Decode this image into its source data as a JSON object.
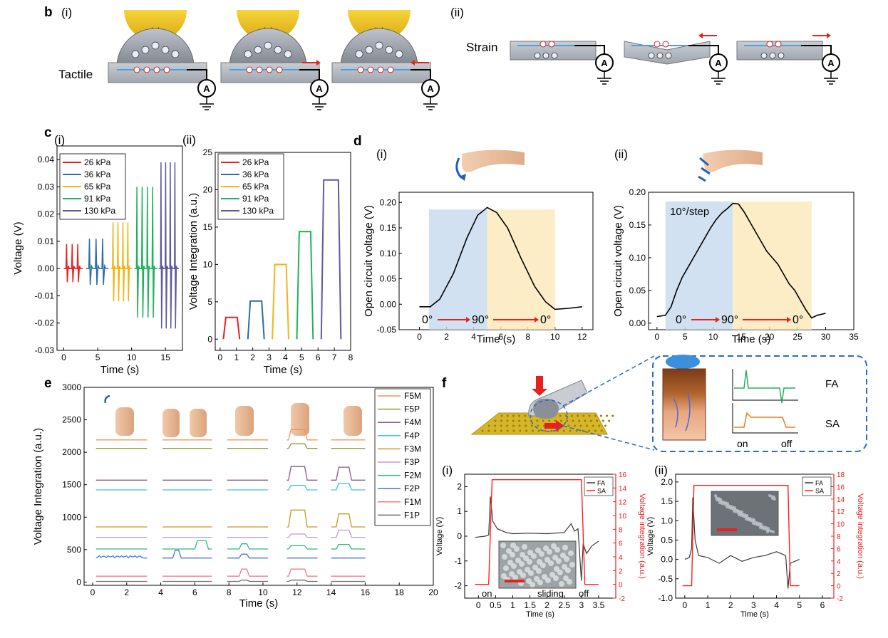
{
  "panel_b": {
    "label": "b",
    "sub_i": "(i)",
    "sub_ii": "(ii)",
    "tactile_label": "Tactile",
    "strain_label": "Strain",
    "ammeter_symbol": "A"
  },
  "panel_c": {
    "label": "c",
    "sub_i": "(i)",
    "sub_ii": "(ii)"
  },
  "panel_d": {
    "label": "d",
    "sub_i": "(i)",
    "sub_ii": "(ii)",
    "angle_labels": [
      "0°",
      "90°",
      "0°"
    ],
    "step_label": "10°/step"
  },
  "panel_e": {
    "label": "e"
  },
  "panel_f": {
    "label": "f",
    "sub_i": "(i)",
    "sub_ii": "(ii)",
    "inset_fa": "FA",
    "inset_sa": "SA",
    "inset_on": "on",
    "inset_off": "off",
    "label_on": "on",
    "label_sliding": "sliding",
    "label_off": "off"
  },
  "chart_data": [
    {
      "id": "c-i",
      "type": "line",
      "xlabel": "Time (s)",
      "ylabel": "Voltage (V)",
      "xlim": [
        -1,
        17.5
      ],
      "ylim": [
        -0.03,
        0.045
      ],
      "xticks": [
        0,
        5,
        10,
        15
      ],
      "yticks": [
        -0.03,
        -0.02,
        -0.01,
        0.0,
        0.01,
        0.02,
        0.03,
        0.04
      ],
      "ytick_labels": [
        "-0.03",
        "-0.02",
        "-0.01",
        "0.00",
        "0.01",
        "0.02",
        "0.03",
        "0.04"
      ],
      "legend_position": "top-left",
      "series": [
        {
          "name": "26 kPa",
          "color": "#e8201f",
          "start": 0,
          "end": 2.8,
          "peak": 0.009,
          "trough": -0.005
        },
        {
          "name": "36 kPa",
          "color": "#2e6da4",
          "start": 3.3,
          "end": 6.6,
          "peak": 0.011,
          "trough": -0.006
        },
        {
          "name": "65 kPa",
          "color": "#f2b416",
          "start": 6.9,
          "end": 10.1,
          "peak": 0.017,
          "trough": -0.012
        },
        {
          "name": "91 kPa",
          "color": "#21b15c",
          "start": 10.4,
          "end": 13.8,
          "peak": 0.03,
          "trough": -0.018
        },
        {
          "name": "130 kPa",
          "color": "#5e5a9e",
          "start": 14.0,
          "end": 17.0,
          "peak": 0.039,
          "trough": -0.022
        }
      ]
    },
    {
      "id": "c-ii",
      "type": "line",
      "xlabel": "Time (s)",
      "ylabel": "Voltage Integration (a.u.)",
      "xlim": [
        -0.3,
        8
      ],
      "ylim": [
        -1.5,
        25
      ],
      "xticks": [
        0,
        1,
        2,
        3,
        4,
        5,
        6,
        7,
        8
      ],
      "yticks": [
        0,
        5,
        10,
        15,
        20,
        25
      ],
      "legend_position": "top-left",
      "series": [
        {
          "name": "26 kPa",
          "color": "#e8201f",
          "x": [
            0.2,
            0.35,
            1.05,
            1.2
          ],
          "y": [
            0,
            2.9,
            2.9,
            0
          ]
        },
        {
          "name": "36 kPa",
          "color": "#2e6da4",
          "x": [
            1.7,
            1.85,
            2.55,
            2.7
          ],
          "y": [
            0,
            5.1,
            5.1,
            0
          ]
        },
        {
          "name": "65 kPa",
          "color": "#f2b416",
          "x": [
            3.2,
            3.35,
            4.05,
            4.2
          ],
          "y": [
            0,
            10,
            10,
            0
          ]
        },
        {
          "name": "91 kPa",
          "color": "#21b15c",
          "x": [
            4.7,
            4.85,
            5.55,
            5.7
          ],
          "y": [
            0,
            14.4,
            14.4,
            0
          ]
        },
        {
          "name": "130 kPa",
          "color": "#5e5a9e",
          "x": [
            6.2,
            6.35,
            7.25,
            7.4
          ],
          "y": [
            0,
            21.3,
            21.3,
            0
          ]
        }
      ]
    },
    {
      "id": "d-i",
      "type": "line",
      "xlabel": "Time (s)",
      "ylabel": "Open circuit voltage (V)",
      "xlim": [
        -1.5,
        12.8
      ],
      "ylim": [
        -0.05,
        0.22
      ],
      "xticks": [
        0,
        2,
        4,
        6,
        8,
        10,
        12
      ],
      "yticks": [
        -0.05,
        0.0,
        0.05,
        0.1,
        0.15,
        0.2
      ],
      "ytick_labels": [
        "-0.05",
        "0.00",
        "0.05",
        "0.10",
        "0.15",
        "0.20"
      ],
      "shade_blue": [
        0.7,
        5.0
      ],
      "shade_yellow": [
        5.0,
        10.0
      ],
      "series": [
        {
          "name": "",
          "color": "#000000",
          "x": [
            0,
            0.8,
            1.5,
            2.5,
            3.5,
            4.3,
            5.0,
            5.7,
            6.5,
            7.5,
            8.5,
            9.3,
            10.0,
            11.0,
            12.0
          ],
          "y": [
            -0.005,
            -0.005,
            0.01,
            0.06,
            0.13,
            0.175,
            0.19,
            0.18,
            0.15,
            0.09,
            0.035,
            0.005,
            -0.01,
            -0.008,
            -0.005
          ]
        }
      ]
    },
    {
      "id": "d-ii",
      "type": "line",
      "xlabel": "Time (s)",
      "ylabel": "Open circuit voltage (V)",
      "xlim": [
        -1.5,
        35
      ],
      "ylim": [
        -0.01,
        0.2
      ],
      "xticks": [
        0,
        5,
        10,
        15,
        20,
        25,
        30,
        35
      ],
      "yticks": [
        0.0,
        0.05,
        0.1,
        0.15,
        0.2
      ],
      "ytick_labels": [
        "0.00",
        "0.05",
        "0.10",
        "0.15",
        "0.20"
      ],
      "shade_blue": [
        1.5,
        13.5
      ],
      "shade_yellow": [
        13.5,
        27.5
      ],
      "series": [
        {
          "name": "",
          "color": "#000000",
          "x": [
            0,
            1.5,
            2.5,
            3.5,
            4.5,
            5.5,
            6.5,
            7.5,
            8.5,
            9.5,
            10.5,
            11.5,
            12.5,
            13.5,
            14.5,
            15.5,
            16.5,
            17.5,
            18.5,
            19.5,
            20.5,
            21.5,
            22.5,
            23.5,
            24.5,
            25.5,
            26.5,
            27.5,
            28.5,
            30.0
          ],
          "y": [
            0.01,
            0.012,
            0.025,
            0.05,
            0.07,
            0.085,
            0.1,
            0.115,
            0.13,
            0.145,
            0.158,
            0.168,
            0.175,
            0.183,
            0.182,
            0.17,
            0.155,
            0.14,
            0.125,
            0.11,
            0.1,
            0.09,
            0.075,
            0.06,
            0.05,
            0.035,
            0.02,
            0.008,
            0.012,
            0.015
          ]
        }
      ]
    },
    {
      "id": "e",
      "type": "line",
      "xlabel": "Time (s)",
      "ylabel": "Voltage Integration (a.u.)",
      "xlim": [
        -0.5,
        20
      ],
      "ylim": [
        -50,
        3000
      ],
      "xticks": [
        0,
        2,
        4,
        6,
        8,
        10,
        12,
        14,
        16,
        18,
        20
      ],
      "yticks": [
        0,
        500,
        1000,
        1500,
        2000,
        2500,
        3000
      ],
      "legend_position": "right",
      "series": [
        {
          "name": "F5M",
          "color": "#f4945f",
          "base": 2190,
          "rise": [
            0,
            0,
            0,
            160,
            0
          ]
        },
        {
          "name": "F5P",
          "color": "#8f9a3c",
          "base": 2060,
          "rise": [
            0,
            0,
            0,
            70,
            0
          ]
        },
        {
          "name": "F4M",
          "color": "#8e5a84",
          "base": 1570,
          "rise": [
            0,
            0,
            0,
            210,
            200
          ]
        },
        {
          "name": "F4P",
          "color": "#3cc7cf",
          "base": 1420,
          "rise": [
            0,
            0,
            0,
            70,
            100
          ]
        },
        {
          "name": "F3M",
          "color": "#c29a24",
          "base": 850,
          "rise": [
            0,
            0,
            0,
            260,
            200
          ]
        },
        {
          "name": "F3P",
          "color": "#c495e6",
          "base": 690,
          "rise": [
            0,
            0,
            0,
            50,
            110
          ]
        },
        {
          "name": "F2M",
          "color": "#2fb880",
          "base": 510,
          "rise": [
            0,
            130,
            80,
            50,
            70
          ]
        },
        {
          "name": "F2P",
          "color": "#4a78c7",
          "base": 370,
          "rise": [
            0,
            120,
            60,
            0,
            0
          ]
        },
        {
          "name": "F1M",
          "color": "#f17b86",
          "base": 90,
          "rise": [
            0,
            0,
            110,
            110,
            0
          ]
        },
        {
          "name": "F1P",
          "color": "#6e6e6e",
          "base": 10,
          "rise": [
            0,
            0,
            20,
            20,
            0
          ]
        }
      ]
    },
    {
      "id": "f-i",
      "type": "line",
      "xlabel": "Time (s)",
      "ylabel": "Voltage (V)",
      "y2label": "Voltage integration (a.u.)",
      "xlim": [
        -0.4,
        4.0
      ],
      "ylim": [
        -2.5,
        2.5
      ],
      "y2lim": [
        -2,
        16
      ],
      "xticks": [
        0,
        0.5,
        1,
        1.5,
        2,
        2.5,
        3,
        3.5
      ],
      "xtick_labels": [
        "0",
        "0.5",
        "1",
        "1.5",
        "2",
        "2.5",
        "3",
        "3.5"
      ],
      "yticks": [
        -2,
        -1,
        0,
        1,
        2
      ],
      "y2ticks": [
        -2,
        0,
        2,
        4,
        6,
        8,
        10,
        12,
        14,
        16
      ],
      "legend_position": "top-right",
      "series": [
        {
          "name": "FA",
          "color": "#3a3a3a",
          "x": [
            -0.1,
            0.2,
            0.3,
            0.35,
            0.42,
            0.55,
            0.8,
            1.0,
            1.5,
            2.0,
            2.5,
            2.7,
            2.8,
            2.9,
            3.0,
            3.05,
            3.15,
            3.3,
            3.5
          ],
          "y": [
            -0.05,
            0.0,
            0.05,
            1.6,
            0.6,
            0.3,
            0.15,
            0.1,
            0.12,
            0.1,
            0.15,
            0.5,
            0.2,
            0.3,
            -1.8,
            -0.3,
            -0.7,
            -0.4,
            -0.2
          ]
        },
        {
          "name": "SA",
          "color": "#ff2020",
          "x": [
            -0.1,
            0.3,
            0.4,
            3.0,
            3.1,
            3.5
          ],
          "y2": [
            0,
            0,
            15.2,
            15.2,
            0,
            0
          ]
        }
      ]
    },
    {
      "id": "f-ii",
      "type": "line",
      "xlabel": "Time (s)",
      "ylabel": "Voltage (V)",
      "y2label": "Voltage integration (a.u.)",
      "xlim": [
        -0.4,
        6.5
      ],
      "ylim": [
        -1.0,
        2.2
      ],
      "y2lim": [
        -2,
        18
      ],
      "xticks": [
        0,
        1,
        2,
        3,
        4,
        5,
        6
      ],
      "yticks": [
        -1.0,
        -0.5,
        0.0,
        0.5,
        1.0,
        1.5,
        2.0
      ],
      "ytick_labels": [
        "-1.0",
        "-0.5",
        "0.0",
        "0.5",
        "1.0",
        "1.5",
        "2.0"
      ],
      "y2ticks": [
        -2,
        0,
        2,
        4,
        6,
        8,
        10,
        12,
        14,
        16,
        18
      ],
      "legend_position": "top-right",
      "series": [
        {
          "name": "FA",
          "color": "#3a3a3a",
          "x": [
            0.0,
            0.2,
            0.3,
            0.35,
            0.45,
            0.6,
            1.0,
            1.5,
            2.0,
            2.5,
            3.0,
            3.5,
            4.0,
            4.4,
            4.5,
            4.6,
            4.8,
            5.0
          ],
          "y": [
            0.0,
            0.05,
            0.3,
            1.6,
            0.5,
            0.1,
            0.05,
            -0.1,
            0.1,
            -0.05,
            0.05,
            0.1,
            0.2,
            0.1,
            -0.75,
            -0.1,
            -0.05,
            0.0
          ]
        },
        {
          "name": "SA",
          "color": "#ff2020",
          "x": [
            -0.1,
            0.3,
            0.4,
            4.5,
            4.6,
            5.0
          ],
          "y2": [
            0,
            0,
            16.2,
            16.2,
            0,
            0
          ]
        }
      ]
    }
  ]
}
